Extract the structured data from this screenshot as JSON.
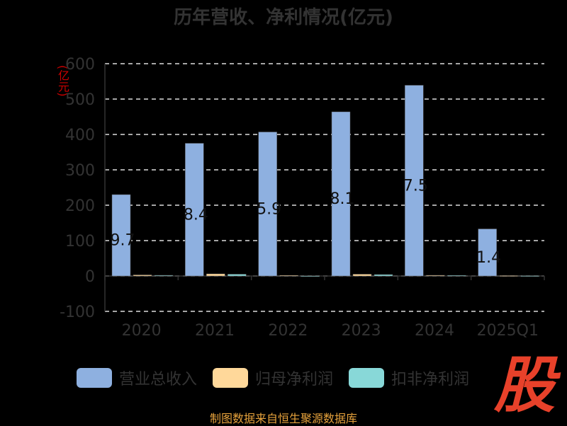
{
  "title": "历年营收、净利情况(亿元)",
  "ylabel": "(亿元)",
  "footer": "制图数据来自恒生聚源数据库",
  "logo_text": "股",
  "colors": {
    "background": "#000000",
    "grid": "#dddddd",
    "axis": "#333333",
    "tick_text": "#333333",
    "ylabel": "#cc0000",
    "footer": "#e6a23c",
    "logo": "#e8412a"
  },
  "chart_data": {
    "type": "bar",
    "categories": [
      "2020",
      "2021",
      "2022",
      "2023",
      "2024",
      "2025Q1"
    ],
    "ylim": [
      -100,
      600
    ],
    "yticks": [
      "600",
      "500",
      "400",
      "300",
      "200",
      "100",
      "0",
      "-100"
    ],
    "grid": true,
    "legend_position": "bottom",
    "series": [
      {
        "name": "营业总收入",
        "color": "#8eb0e0",
        "values": [
          230,
          375,
          407,
          464,
          539,
          133
        ],
        "labels": [
          "9.7",
          "8.4",
          "5.9",
          "8.1",
          "7.5",
          "1.4"
        ]
      },
      {
        "name": "归母净利润",
        "color": "#ffd89a",
        "values": [
          3,
          6,
          1.5,
          5,
          2,
          1
        ]
      },
      {
        "name": "扣非净利润",
        "color": "#88d8d8",
        "values": [
          2,
          5,
          0.5,
          4,
          1.5,
          0.8
        ]
      }
    ]
  }
}
